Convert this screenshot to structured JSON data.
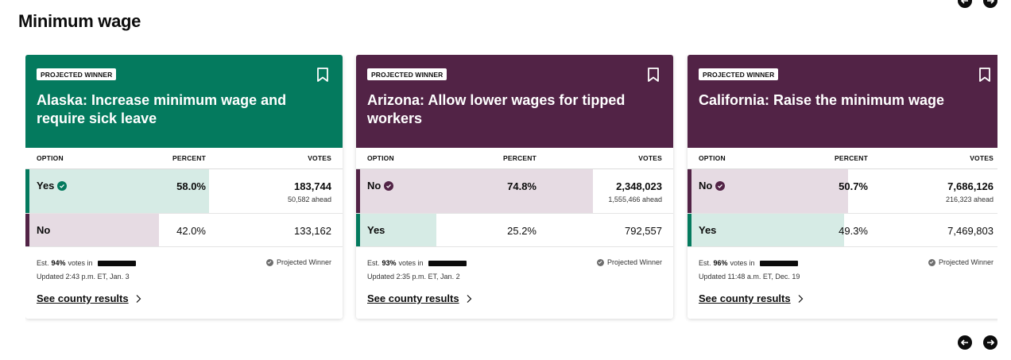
{
  "section": {
    "title": "Minimum wage"
  },
  "colors": {
    "green": "#047a5e",
    "maroon": "#522346",
    "green_bar": "#d6ebe5",
    "maroon_bar": "#e6dbe3"
  },
  "columns": {
    "option": "OPTION",
    "percent": "PERCENT",
    "votes": "VOTES"
  },
  "cards": [
    {
      "badge": "PROJECTED WINNER",
      "title": "Alaska: Increase minimum wage and require sick leave",
      "theme": "green",
      "rows": [
        {
          "option": "Yes",
          "percent": "58.0%",
          "percent_value": 58.0,
          "votes": "183,744",
          "ahead": "50,582 ahead",
          "winner": true,
          "color": "green"
        },
        {
          "option": "No",
          "percent": "42.0%",
          "percent_value": 42.0,
          "votes": "133,162",
          "ahead": "",
          "winner": false,
          "color": "maroon"
        }
      ],
      "est_prefix": "Est.",
      "est_pct": "94%",
      "est_suffix": "votes in",
      "updated": "Updated 2:43 p.m. ET, Jan. 3",
      "projected_label": "Projected Winner",
      "county_link": "See county results"
    },
    {
      "badge": "PROJECTED WINNER",
      "title": "Arizona: Allow lower wages for tipped workers",
      "theme": "maroon",
      "rows": [
        {
          "option": "No",
          "percent": "74.8%",
          "percent_value": 74.8,
          "votes": "2,348,023",
          "ahead": "1,555,466 ahead",
          "winner": true,
          "color": "maroon"
        },
        {
          "option": "Yes",
          "percent": "25.2%",
          "percent_value": 25.2,
          "votes": "792,557",
          "ahead": "",
          "winner": false,
          "color": "green"
        }
      ],
      "est_prefix": "Est.",
      "est_pct": "93%",
      "est_suffix": "votes in",
      "updated": "Updated 2:35 p.m. ET, Jan. 2",
      "projected_label": "Projected Winner",
      "county_link": "See county results"
    },
    {
      "badge": "PROJECTED WINNER",
      "title": "California: Raise the minimum wage",
      "theme": "maroon",
      "rows": [
        {
          "option": "No",
          "percent": "50.7%",
          "percent_value": 50.7,
          "votes": "7,686,126",
          "ahead": "216,323 ahead",
          "winner": true,
          "color": "maroon"
        },
        {
          "option": "Yes",
          "percent": "49.3%",
          "percent_value": 49.3,
          "votes": "7,469,803",
          "ahead": "",
          "winner": false,
          "color": "green"
        }
      ],
      "est_prefix": "Est.",
      "est_pct": "96%",
      "est_suffix": "votes in",
      "updated": "Updated 11:48 a.m. ET, Dec. 19",
      "projected_label": "Projected Winner",
      "county_link": "See county results"
    }
  ],
  "nav": {
    "prev_icon": "arrow-left-icon",
    "next_icon": "arrow-right-icon"
  }
}
